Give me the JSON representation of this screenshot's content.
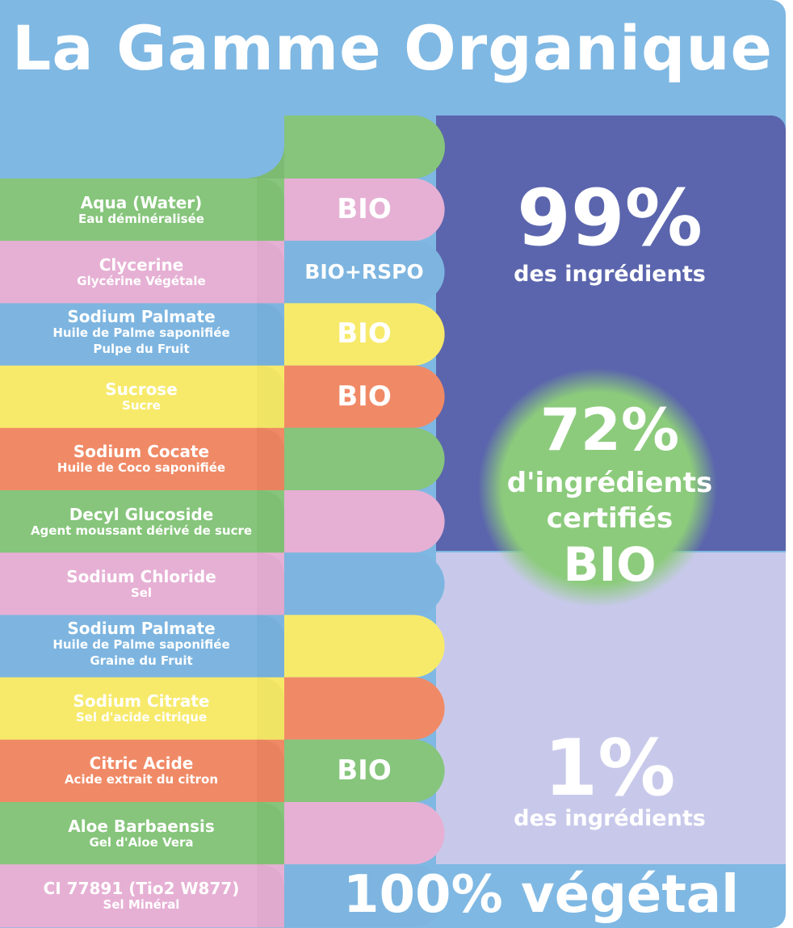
{
  "title": "La Gamme Organique",
  "colors": {
    "sky": "#7fb8e3",
    "green": "#86c57b",
    "pink": "#e6b0d4",
    "blue": "#7db5e0",
    "yellow": "#f7ea6b",
    "orange": "#f08a66",
    "navy": "#5b65ad",
    "lavender": "#c8c9ea",
    "circle": "#8ccb7c"
  },
  "ingredients": [
    {
      "name": "Aqua (Water)",
      "sub": "Eau déminéralisée",
      "color": "green",
      "badge": "BIO",
      "badge_color": "pink"
    },
    {
      "name": "Clycerine",
      "sub": "Glycérine Végétale",
      "color": "pink",
      "badge": "BIO+RSPO",
      "badge_color": "blue"
    },
    {
      "name": "Sodium Palmate",
      "sub": "Huile de Palme saponifiée",
      "extra": "Pulpe du Fruit",
      "color": "blue",
      "badge": "BIO",
      "badge_color": "yellow"
    },
    {
      "name": "Sucrose",
      "sub": "Sucre",
      "color": "yellow",
      "badge": "BIO",
      "badge_color": "orange"
    },
    {
      "name": "Sodium Cocate",
      "sub": "Huile de Coco saponifiée",
      "color": "orange",
      "badge": "",
      "badge_color": "green"
    },
    {
      "name": "Decyl Glucoside",
      "sub": "Agent moussant dérivé de sucre",
      "color": "green",
      "badge": "",
      "badge_color": "pink"
    },
    {
      "name": "Sodium Chloride",
      "sub": "Sel",
      "color": "pink",
      "badge": "",
      "badge_color": "blue"
    },
    {
      "name": "Sodium Palmate",
      "sub": "Huile de Palme saponifiée",
      "extra": "Graine du Fruit",
      "color": "blue",
      "badge": "",
      "badge_color": "yellow"
    },
    {
      "name": "Sodium Citrate",
      "sub": "Sel d'acide citrique",
      "color": "yellow",
      "badge": "",
      "badge_color": "orange"
    },
    {
      "name": "Citric Acide",
      "sub": "Acide extrait du citron",
      "color": "orange",
      "badge": "BIO",
      "badge_color": "green"
    },
    {
      "name": "Aloe Barbaensis",
      "sub": "Gel d'Aloe Vera",
      "color": "green",
      "badge": "",
      "badge_color": "pink"
    },
    {
      "name": "CI 77891 (Tio2 W877)",
      "sub": "Sel Minéral",
      "color": "pink",
      "badge": "",
      "badge_color": "blue"
    }
  ],
  "stat_top": {
    "value": "99%",
    "label": "des ingrédients"
  },
  "stat_circle": {
    "value": "72%",
    "line1": "d'ingrédients",
    "line2": "certifiés",
    "line3": "BIO"
  },
  "stat_bottom": {
    "value": "1%",
    "label": "des ingrédients"
  },
  "footer": "100% végétal"
}
